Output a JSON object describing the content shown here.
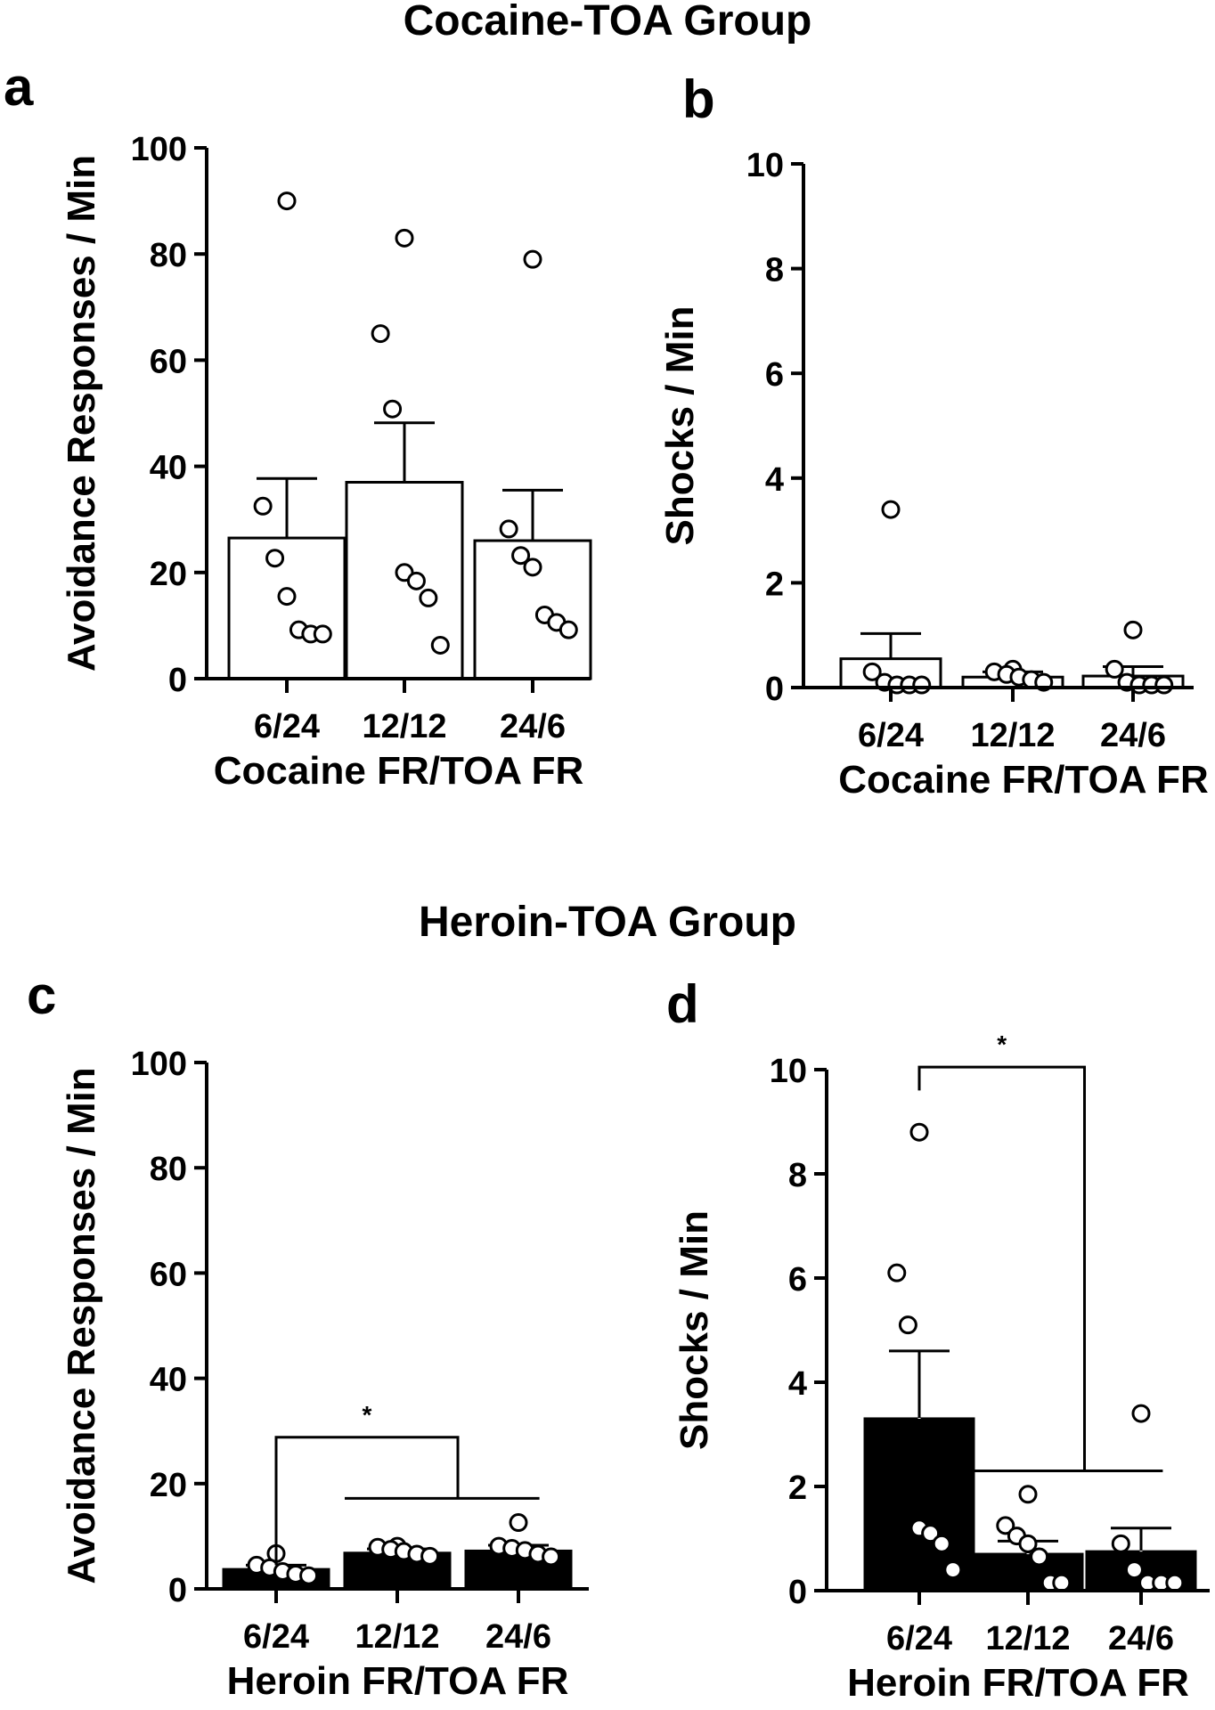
{
  "groups": {
    "top": "Cocaine-TOA Group",
    "bottom": "Heroin-TOA Group"
  },
  "chart_data": [
    {
      "panel": "a",
      "type": "bar",
      "ylabel": "Avoidance Responses / Min",
      "xlabel": "Cocaine FR/TOA FR",
      "ylim": [
        0,
        100
      ],
      "yticks": [
        0,
        20,
        40,
        60,
        80,
        100
      ],
      "categories": [
        "6/24",
        "12/12",
        "24/6"
      ],
      "bar_color": "#ffffff",
      "values": [
        26.5,
        37,
        26
      ],
      "errors": [
        11.2,
        11.2,
        9.5
      ],
      "points": [
        [
          90,
          32.5,
          22.7,
          15.5,
          9.2,
          8.4,
          8.4
        ],
        [
          83,
          65,
          50.8,
          20,
          18.4,
          15.2,
          6.3
        ],
        [
          79,
          28.2,
          23.2,
          21,
          12,
          10.6,
          9.2
        ]
      ],
      "annotations": []
    },
    {
      "panel": "b",
      "type": "bar",
      "ylabel": "Shocks / Min",
      "xlabel": "Cocaine FR/TOA FR",
      "ylim": [
        0,
        10
      ],
      "yticks": [
        0,
        2,
        4,
        6,
        8,
        10
      ],
      "categories": [
        "6/24",
        "12/12",
        "24/6"
      ],
      "bar_color": "#ffffff",
      "values": [
        0.55,
        0.2,
        0.22
      ],
      "errors": [
        0.48,
        0.1,
        0.18
      ],
      "points": [
        [
          3.4,
          0.3,
          0.1,
          0.05,
          0.05,
          0.05
        ],
        [
          0.35,
          0.3,
          0.25,
          0.2,
          0.15,
          0.1
        ],
        [
          1.1,
          0.35,
          0.1,
          0.05,
          0.05,
          0.05
        ]
      ],
      "annotations": []
    },
    {
      "panel": "c",
      "type": "bar",
      "ylabel": "Avoidance Responses / Min",
      "xlabel": "Heroin FR/TOA FR",
      "ylim": [
        0,
        100
      ],
      "yticks": [
        0,
        20,
        40,
        60,
        80,
        100
      ],
      "categories": [
        "6/24",
        "12/12",
        "24/6"
      ],
      "bar_color": "#000000",
      "values": [
        3.7,
        6.8,
        7.2
      ],
      "errors": [
        0.8,
        0.8,
        1.1
      ],
      "points": [
        [
          6.7,
          4.5,
          4,
          3.3,
          2.8,
          2.5
        ],
        [
          8.1,
          7.9,
          7.5,
          7.1,
          6.6,
          6.2
        ],
        [
          12.6,
          8.1,
          7.7,
          7.3,
          6.6,
          6.1
        ]
      ],
      "annotations": [
        {
          "text": "*",
          "from": 0,
          "to_range": [
            1,
            2
          ],
          "y_top": 28.8,
          "y_right": 17.2,
          "from_y": 4.5
        }
      ]
    },
    {
      "panel": "d",
      "type": "bar",
      "ylabel": "Shocks / Min",
      "xlabel": "Heroin FR/TOA FR",
      "ylim": [
        0,
        10
      ],
      "yticks": [
        0,
        2,
        4,
        6,
        8,
        10
      ],
      "categories": [
        "6/24",
        "12/12",
        "24/6"
      ],
      "bar_color": "#000000",
      "values": [
        3.3,
        0.7,
        0.75
      ],
      "errors": [
        1.3,
        0.25,
        0.45
      ],
      "points": [
        [
          8.8,
          6.1,
          5.1,
          1.2,
          1.1,
          0.9,
          0.4
        ],
        [
          1.85,
          1.25,
          1.05,
          0.9,
          0.65,
          0.15,
          0.15
        ],
        [
          3.4,
          0.9,
          0.4,
          0.15,
          0.15,
          0.15
        ]
      ],
      "annotations": [
        {
          "text": "*",
          "from": 0,
          "to_range": [
            1,
            2
          ],
          "y_top": 10.05,
          "y_right": 2.3,
          "from_y": 9.6
        }
      ]
    }
  ]
}
